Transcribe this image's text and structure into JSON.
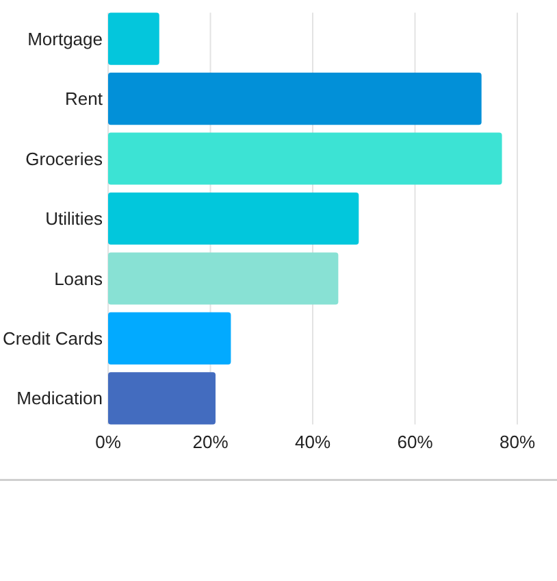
{
  "chart_data": {
    "type": "bar",
    "orientation": "horizontal",
    "categories": [
      "Mortgage",
      "Rent",
      "Groceries",
      "Utilities",
      "Loans",
      "Credit Cards",
      "Medication"
    ],
    "values": [
      10,
      73,
      77,
      49,
      45,
      24,
      21
    ],
    "colors": [
      "#04c6dc",
      "#0290d8",
      "#3ce3d4",
      "#02c7dc",
      "#88e1d4",
      "#02aaff",
      "#436cbf"
    ],
    "xlim": [
      0,
      80
    ],
    "xticks": [
      {
        "value": 0,
        "label": "0%"
      },
      {
        "value": 20,
        "label": "20%"
      },
      {
        "value": 40,
        "label": "40%"
      },
      {
        "value": 60,
        "label": "60%"
      },
      {
        "value": 80,
        "label": "80%"
      }
    ],
    "grid": "x"
  }
}
